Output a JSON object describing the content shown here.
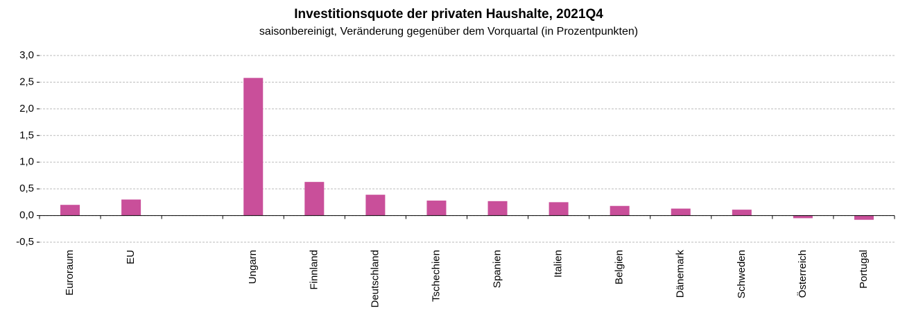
{
  "chart_data": {
    "type": "bar",
    "title": "Investitionsquote der privaten Haushalte, 2021Q4",
    "subtitle": "saisonbereinigt, Veränderung gegenüber dem Vorquartal (in Prozentpunkten)",
    "categories": [
      "Euroraum",
      "EU",
      null,
      "Ungarn",
      "Finnland",
      "Deutschland",
      "Tschechien",
      "Spanien",
      "Italien",
      "Belgien",
      "Dänemark",
      "Schweden",
      "Österreich",
      "Portugal"
    ],
    "values": [
      0.2,
      0.3,
      null,
      2.58,
      0.63,
      0.39,
      0.28,
      0.27,
      0.25,
      0.18,
      0.13,
      0.11,
      -0.05,
      -0.08
    ],
    "color": "#c94f9a",
    "ylim": [
      -0.5,
      3
    ],
    "yticks": [
      {
        "value": -0.5,
        "label": "-0,5"
      },
      {
        "value": 0,
        "label": "0,0"
      },
      {
        "value": 0.5,
        "label": "0,5"
      },
      {
        "value": 1,
        "label": "1,0"
      },
      {
        "value": 1.5,
        "label": "1,5"
      },
      {
        "value": 2,
        "label": "2,0"
      },
      {
        "value": 2.5,
        "label": "2,5"
      },
      {
        "value": 3,
        "label": "3,0"
      }
    ],
    "grid": true
  }
}
